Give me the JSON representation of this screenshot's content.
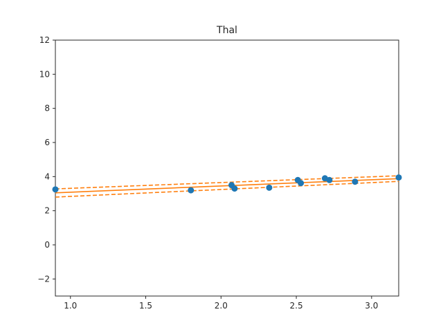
{
  "chart_data": {
    "type": "scatter",
    "title": "Thal",
    "xlabel": "",
    "ylabel": "",
    "xlim": [
      0.9,
      3.18
    ],
    "ylim": [
      -3,
      12
    ],
    "xticks": [
      1.0,
      1.5,
      2.0,
      2.5,
      3.0
    ],
    "xtick_labels": [
      "1.0",
      "1.5",
      "2.0",
      "2.5",
      "3.0"
    ],
    "yticks": [
      -2,
      0,
      2,
      4,
      6,
      8,
      10,
      12
    ],
    "ytick_labels": [
      "−2",
      "0",
      "2",
      "4",
      "6",
      "8",
      "10",
      "12"
    ],
    "grid": false,
    "series": [
      {
        "kind": "points",
        "color": "#1f77b4",
        "x": [
          0.9,
          1.8,
          2.07,
          2.09,
          2.32,
          2.51,
          2.53,
          2.69,
          2.72,
          2.89,
          3.18
        ],
        "y": [
          3.25,
          3.2,
          3.5,
          3.3,
          3.35,
          3.8,
          3.62,
          3.9,
          3.8,
          3.7,
          3.95
        ]
      },
      {
        "kind": "fit",
        "color": "#ff7f0e",
        "style": "solid",
        "x": [
          0.9,
          3.18
        ],
        "y": [
          3.05,
          3.88
        ]
      },
      {
        "kind": "upper-band",
        "color": "#ff7f0e",
        "style": "dashed",
        "x": [
          0.9,
          3.18
        ],
        "y": [
          3.28,
          4.05
        ]
      },
      {
        "kind": "lower-band",
        "color": "#ff7f0e",
        "style": "dashed",
        "x": [
          0.9,
          3.18
        ],
        "y": [
          2.8,
          3.72
        ]
      }
    ]
  }
}
